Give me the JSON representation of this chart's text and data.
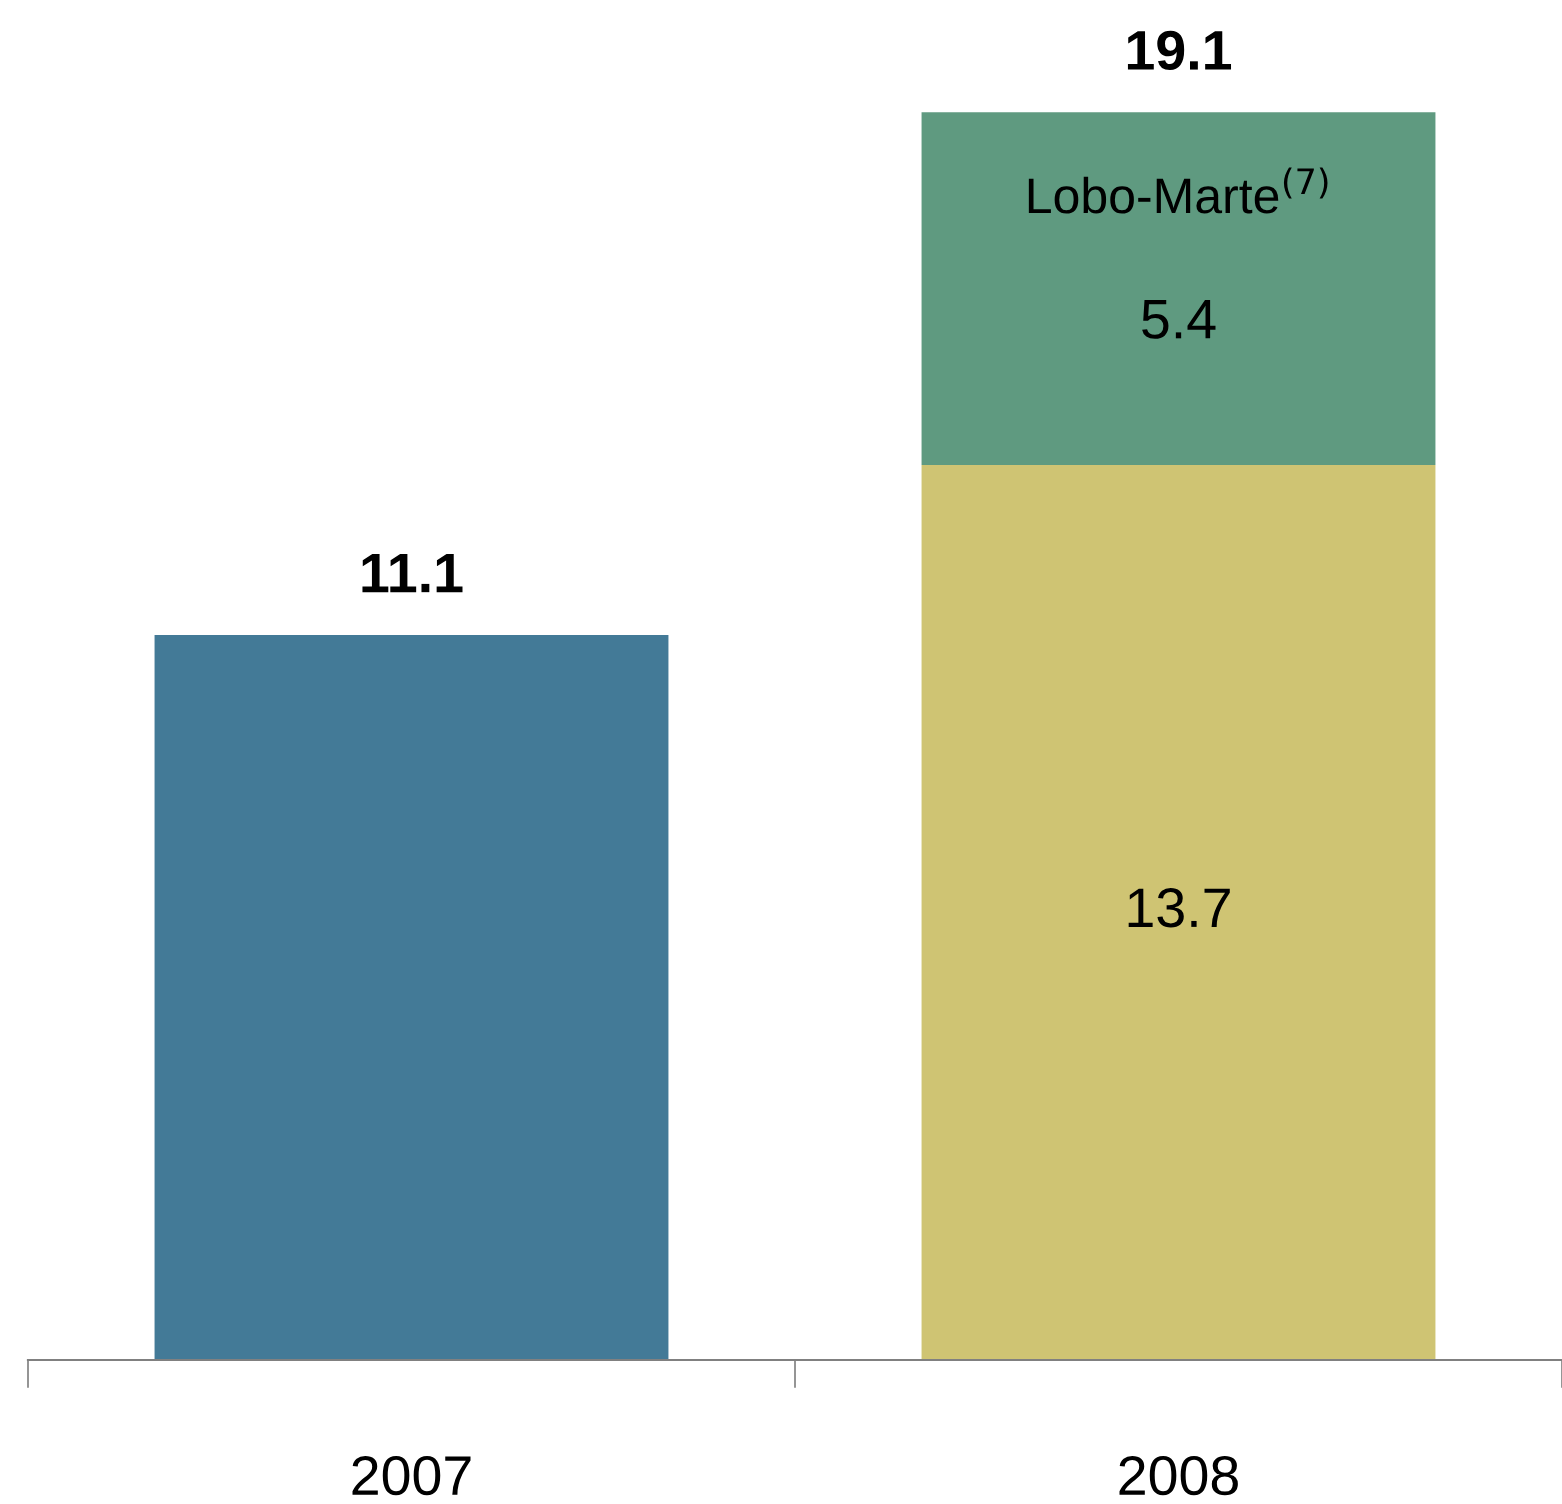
{
  "chart_data": {
    "type": "bar",
    "stacked": true,
    "categories": [
      "2007",
      "2008"
    ],
    "series": [
      {
        "colors": [
          "#437a97",
          "#cfc473"
        ],
        "values": [
          11.1,
          13.7
        ],
        "value_labels": [
          null,
          "13.7"
        ]
      },
      {
        "name": "Lobo-Marte$^{(7)}$",
        "color": "#5f9a80",
        "values": [
          null,
          5.4
        ],
        "value_labels": [
          null,
          "5.4"
        ]
      }
    ],
    "totals": [
      "11.1",
      "19.1"
    ],
    "grid": false,
    "legend": false,
    "tick_labels": "x"
  }
}
